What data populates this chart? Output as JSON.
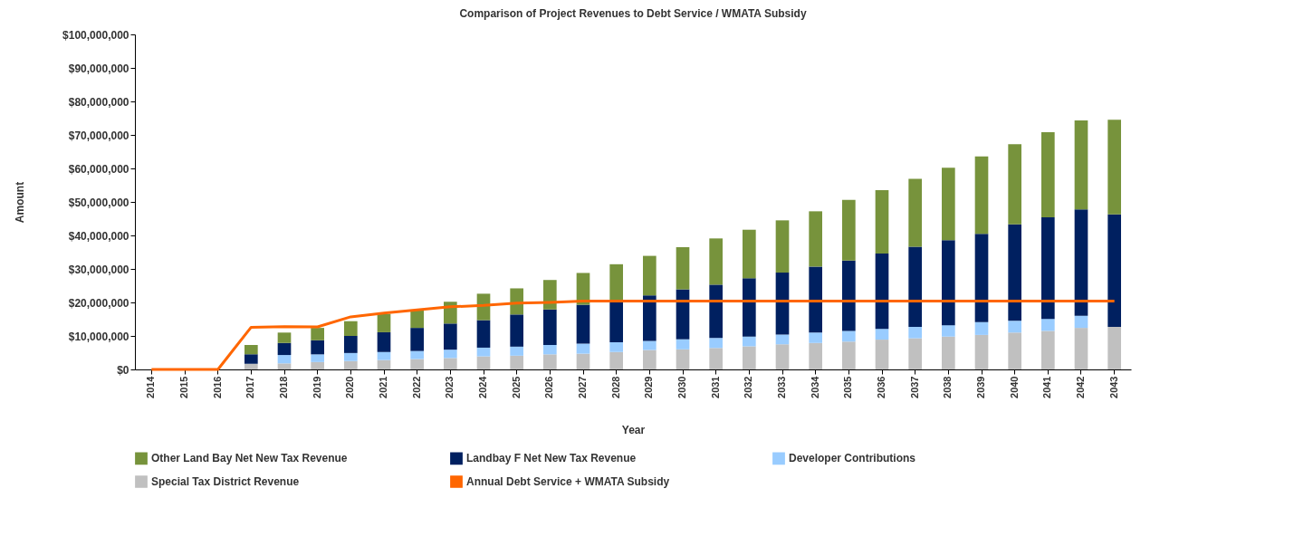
{
  "chart_data": {
    "type": "bar",
    "title": "Comparison of Project Revenues to Debt Service / WMATA Subsidy",
    "xlabel": "Year",
    "ylabel": "Amount",
    "categories": [
      "2014",
      "2015",
      "2016",
      "2017",
      "2018",
      "2019",
      "2020",
      "2021",
      "2022",
      "2023",
      "2024",
      "2025",
      "2026",
      "2027",
      "2028",
      "2029",
      "2030",
      "2031",
      "2032",
      "2033",
      "2034",
      "2035",
      "2036",
      "2037",
      "2038",
      "2039",
      "2040",
      "2041",
      "2042",
      "2043"
    ],
    "stacked": true,
    "legend": "bottom",
    "grid": false,
    "ylim": [
      0,
      100000000
    ],
    "yticks": [
      {
        "value": 0,
        "label": "$0"
      },
      {
        "value": 10000000,
        "label": "$10,000,000"
      },
      {
        "value": 20000000,
        "label": "$20,000,000"
      },
      {
        "value": 30000000,
        "label": "$30,000,000"
      },
      {
        "value": 40000000,
        "label": "$40,000,000"
      },
      {
        "value": 50000000,
        "label": "$50,000,000"
      },
      {
        "value": 60000000,
        "label": "$60,000,000"
      },
      {
        "value": 70000000,
        "label": "$70,000,000"
      },
      {
        "value": 80000000,
        "label": "$80,000,000"
      },
      {
        "value": 90000000,
        "label": "$90,000,000"
      },
      {
        "value": 100000000,
        "label": "$100,000,000"
      }
    ],
    "series": [
      {
        "name": "Special Tax District Revenue",
        "color": "#c0c0c0",
        "values": [
          0,
          0,
          0,
          1700000,
          1800000,
          2200000,
          2500000,
          2800000,
          3100000,
          3400000,
          3900000,
          4100000,
          4500000,
          4700000,
          5200000,
          5800000,
          6000000,
          6400000,
          6900000,
          7500000,
          7900000,
          8300000,
          8900000,
          9300000,
          9800000,
          10300000,
          11000000,
          11500000,
          12400000,
          12700000
        ]
      },
      {
        "name": "Developer Contributions",
        "color": "#99ccff",
        "values": [
          0,
          0,
          0,
          0,
          2500000,
          2300000,
          2400000,
          2400000,
          2400000,
          2500000,
          2600000,
          2700000,
          2800000,
          3000000,
          2900000,
          2700000,
          3000000,
          3000000,
          2900000,
          2900000,
          3100000,
          3200000,
          3200000,
          3400000,
          3400000,
          3800000,
          3500000,
          3600000,
          3600000,
          0
        ]
      },
      {
        "name": "Landbay F Net New Tax Revenue",
        "color": "#002060",
        "values": [
          0,
          0,
          0,
          2800000,
          3600000,
          4200000,
          5100000,
          5900000,
          6900000,
          7800000,
          8200000,
          9600000,
          10600000,
          11600000,
          11900000,
          13600000,
          14900000,
          15900000,
          17400000,
          18500000,
          19700000,
          21000000,
          22500000,
          23900000,
          25400000,
          26400000,
          28800000,
          30300000,
          31800000,
          33600000
        ]
      },
      {
        "name": "Other Land Bay Net New Tax Revenue",
        "color": "#77933c",
        "values": [
          0,
          0,
          0,
          2800000,
          3100000,
          3700000,
          4400000,
          5500000,
          5400000,
          6500000,
          7900000,
          7800000,
          8800000,
          9500000,
          11400000,
          11800000,
          12600000,
          13800000,
          14500000,
          15600000,
          16500000,
          18100000,
          18900000,
          20300000,
          21600000,
          23100000,
          23900000,
          25400000,
          26500000,
          28200000
        ]
      },
      {
        "name": "Annual Debt Service + WMATA Subsidy",
        "type": "line",
        "color": "#ff6600",
        "values": [
          0,
          0,
          0,
          12600000,
          12800000,
          12700000,
          15700000,
          16800000,
          17800000,
          18700000,
          19100000,
          19800000,
          20000000,
          20400000,
          20400000,
          20400000,
          20400000,
          20400000,
          20400000,
          20400000,
          20400000,
          20400000,
          20400000,
          20400000,
          20400000,
          20400000,
          20400000,
          20400000,
          20400000,
          20400000
        ]
      }
    ]
  }
}
